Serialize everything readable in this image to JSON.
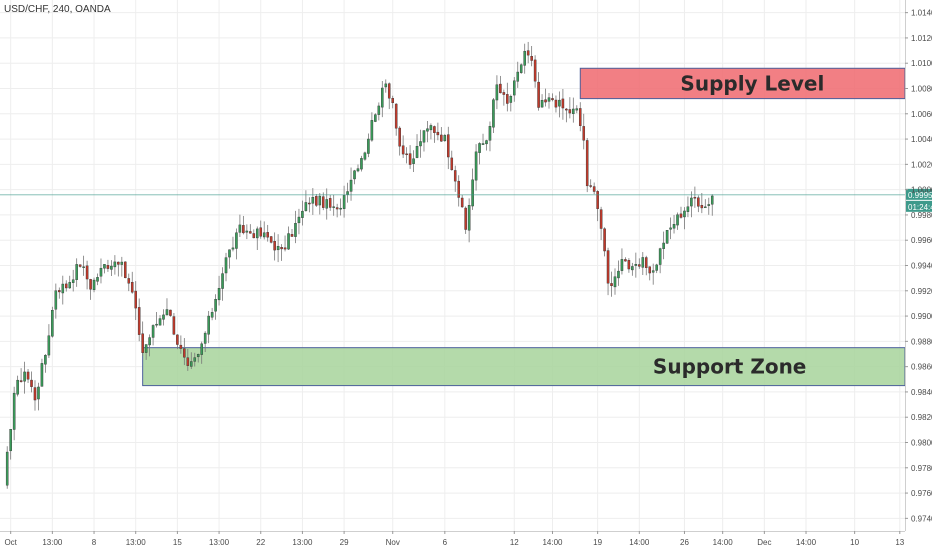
{
  "chart_data": {
    "type": "candlestick",
    "title": "USD/CHF, 240, OANDA",
    "ylim": [
      0.973,
      1.015
    ],
    "x_index_range": [
      0,
      259
    ],
    "y_ticks": [
      "1.01400",
      "1.01200",
      "1.01000",
      "1.00800",
      "1.00600",
      "1.00400",
      "1.00200",
      "1.00000",
      "0.99800",
      "0.99600",
      "0.99400",
      "0.99200",
      "0.99000",
      "0.98800",
      "0.98600",
      "0.98400",
      "0.98200",
      "0.98000",
      "0.97800",
      "0.97600",
      "0.97400"
    ],
    "x_ticks": [
      {
        "label": "Oct",
        "i": 2
      },
      {
        "label": "13:00",
        "i": 14
      },
      {
        "label": "8",
        "i": 26
      },
      {
        "label": "13:00",
        "i": 38
      },
      {
        "label": "15",
        "i": 50
      },
      {
        "label": "13:00",
        "i": 62
      },
      {
        "label": "22",
        "i": 74
      },
      {
        "label": "13:00",
        "i": 86
      },
      {
        "label": "29",
        "i": 98
      },
      {
        "label": "Nov",
        "i": 112
      },
      {
        "label": "6",
        "i": 127
      },
      {
        "label": "12",
        "i": 147
      },
      {
        "label": "14:00",
        "i": 158
      },
      {
        "label": "19",
        "i": 171
      },
      {
        "label": "14:00",
        "i": 183
      },
      {
        "label": "26",
        "i": 196
      },
      {
        "label": "14:00",
        "i": 207
      },
      {
        "label": "Dec",
        "i": 219
      },
      {
        "label": "14:00",
        "i": 231
      },
      {
        "label": "10",
        "i": 245
      },
      {
        "label": "13",
        "i": 258
      }
    ],
    "current_price": {
      "value": 0.99959,
      "label": "0.99959",
      "timer": "01:24:46",
      "color": "#3d9a8b"
    },
    "zones": [
      {
        "name": "Supply Level",
        "x_start_i": 166,
        "y_low": 1.0072,
        "y_high": 1.0096,
        "fill": "#f0696f",
        "border": "#4b5f9a"
      },
      {
        "name": "Support Zone",
        "x_start_i": 40,
        "y_low": 0.9845,
        "y_high": 0.9875,
        "fill": "#a7d49b",
        "border": "#4b5f9a"
      }
    ],
    "up_color": "#3a9b5a",
    "down_color": "#c0392b",
    "anchors": [
      [
        0,
        0.9763
      ],
      [
        3,
        0.984
      ],
      [
        6,
        0.9857
      ],
      [
        9,
        0.9836
      ],
      [
        12,
        0.987
      ],
      [
        15,
        0.9922
      ],
      [
        18,
        0.9924
      ],
      [
        22,
        0.9942
      ],
      [
        25,
        0.9924
      ],
      [
        29,
        0.994
      ],
      [
        33,
        0.9945
      ],
      [
        37,
        0.9918
      ],
      [
        40,
        0.9872
      ],
      [
        43,
        0.989
      ],
      [
        47,
        0.9908
      ],
      [
        50,
        0.988
      ],
      [
        53,
        0.9857
      ],
      [
        56,
        0.9868
      ],
      [
        60,
        0.9905
      ],
      [
        64,
        0.9945
      ],
      [
        68,
        0.9968
      ],
      [
        72,
        0.9966
      ],
      [
        76,
        0.9962
      ],
      [
        80,
        0.995
      ],
      [
        84,
        0.9972
      ],
      [
        88,
        0.9992
      ],
      [
        92,
        0.999
      ],
      [
        96,
        0.9982
      ],
      [
        100,
        1.001
      ],
      [
        104,
        1.0032
      ],
      [
        107,
        1.0063
      ],
      [
        110,
        1.0083
      ],
      [
        112,
        1.007
      ],
      [
        114,
        1.0035
      ],
      [
        117,
        1.0018
      ],
      [
        120,
        1.004
      ],
      [
        123,
        1.005
      ],
      [
        127,
        1.004
      ],
      [
        130,
        1.001
      ],
      [
        133,
        0.9968
      ],
      [
        136,
        1.003
      ],
      [
        139,
        1.004
      ],
      [
        142,
        1.0082
      ],
      [
        145,
        1.0067
      ],
      [
        148,
        1.009
      ],
      [
        150,
        1.011
      ],
      [
        152,
        1.01
      ],
      [
        154,
        1.0065
      ],
      [
        158,
        1.0072
      ],
      [
        162,
        1.0062
      ],
      [
        165,
        1.0062
      ],
      [
        167,
        1.004
      ],
      [
        168,
        1.0
      ],
      [
        170,
        1.0003
      ],
      [
        172,
        0.997
      ],
      [
        174,
        0.9925
      ],
      [
        176,
        0.993
      ],
      [
        178,
        0.9948
      ],
      [
        181,
        0.9935
      ],
      [
        184,
        0.9942
      ],
      [
        187,
        0.9935
      ],
      [
        190,
        0.996
      ],
      [
        193,
        0.9974
      ],
      [
        196,
        0.9985
      ],
      [
        199,
        0.9993
      ],
      [
        202,
        0.9987
      ],
      [
        204,
        0.9995
      ]
    ]
  }
}
